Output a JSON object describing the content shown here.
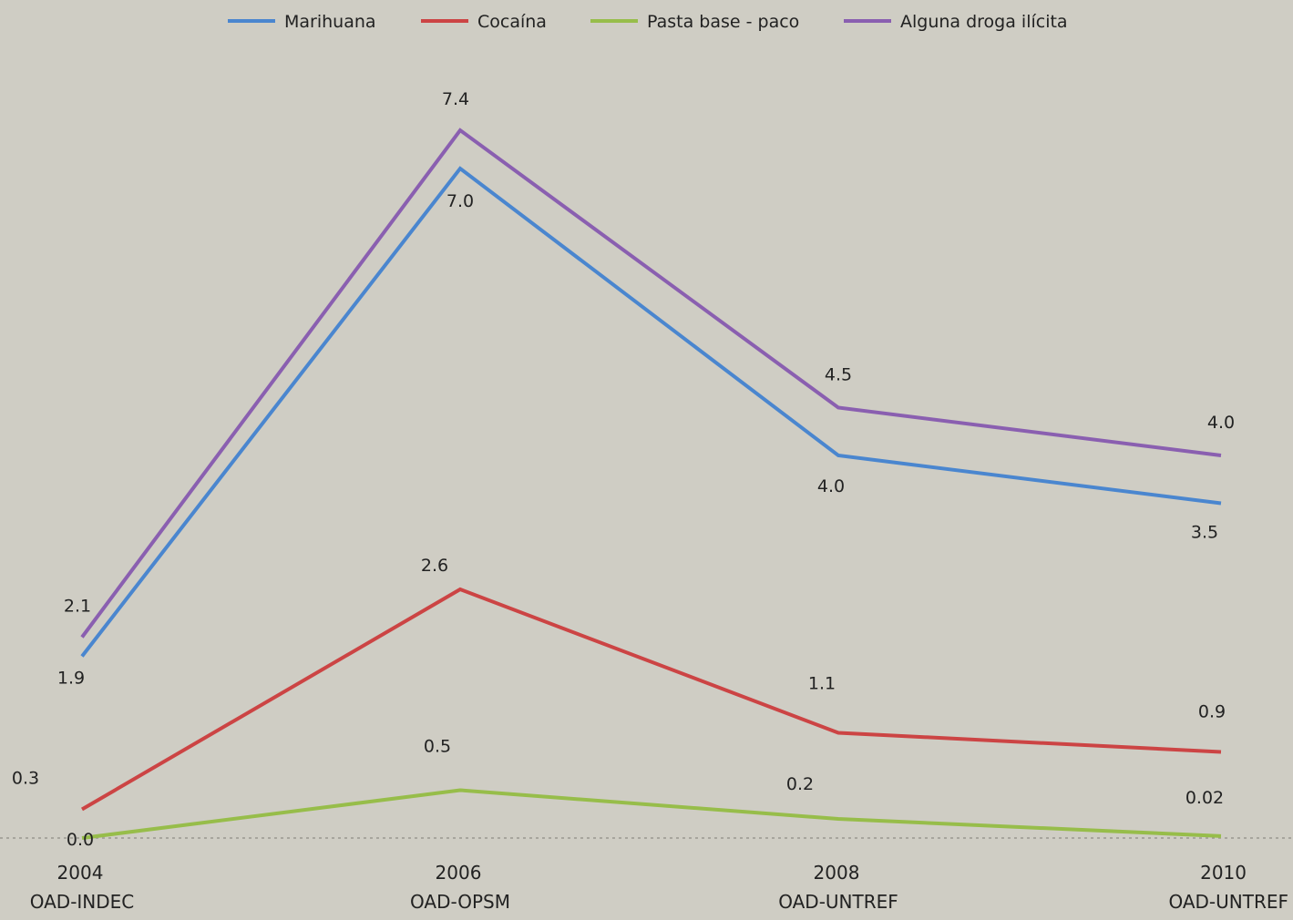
{
  "chart_data": {
    "type": "line",
    "title": "",
    "xlabel": "",
    "ylabel": "",
    "categories": [
      {
        "year": "2004",
        "source": "OAD-INDEC"
      },
      {
        "year": "2006",
        "source": "OAD-OPSM"
      },
      {
        "year": "2008",
        "source": "OAD-UNTREF"
      },
      {
        "year": "2010",
        "source": "OAD-UNTREF"
      }
    ],
    "ylim": [
      0,
      8
    ],
    "grid": false,
    "legend_position": "top",
    "series": [
      {
        "name": "Marihuana",
        "color": "#4a86cf",
        "values": [
          1.9,
          7.0,
          4.0,
          3.5
        ],
        "labels": [
          "1.9",
          "7.0",
          "4.0",
          "3.5"
        ],
        "label_side": [
          "below",
          "below",
          "below",
          "below"
        ]
      },
      {
        "name": "Cocaína",
        "color": "#cc4444",
        "values": [
          0.3,
          2.6,
          1.1,
          0.9
        ],
        "labels": [
          "0.3",
          "2.6",
          "1.1",
          "0.9"
        ],
        "label_side": [
          "above",
          "above",
          "above",
          "above"
        ]
      },
      {
        "name": "Pasta base - paco",
        "color": "#97bd4a",
        "values": [
          0.0,
          0.5,
          0.2,
          0.02
        ],
        "labels": [
          "0.0",
          "0.5",
          "0.2",
          "0.02"
        ],
        "label_side": [
          "above",
          "above",
          "above",
          "above"
        ]
      },
      {
        "name": "Alguna droga ilícita",
        "color": "#8a5fb0",
        "values": [
          2.1,
          7.4,
          4.5,
          4.0
        ],
        "labels": [
          "2.1",
          "7.4",
          "4.5",
          "4.0"
        ],
        "label_side": [
          "above",
          "above",
          "above",
          "above"
        ]
      }
    ]
  }
}
